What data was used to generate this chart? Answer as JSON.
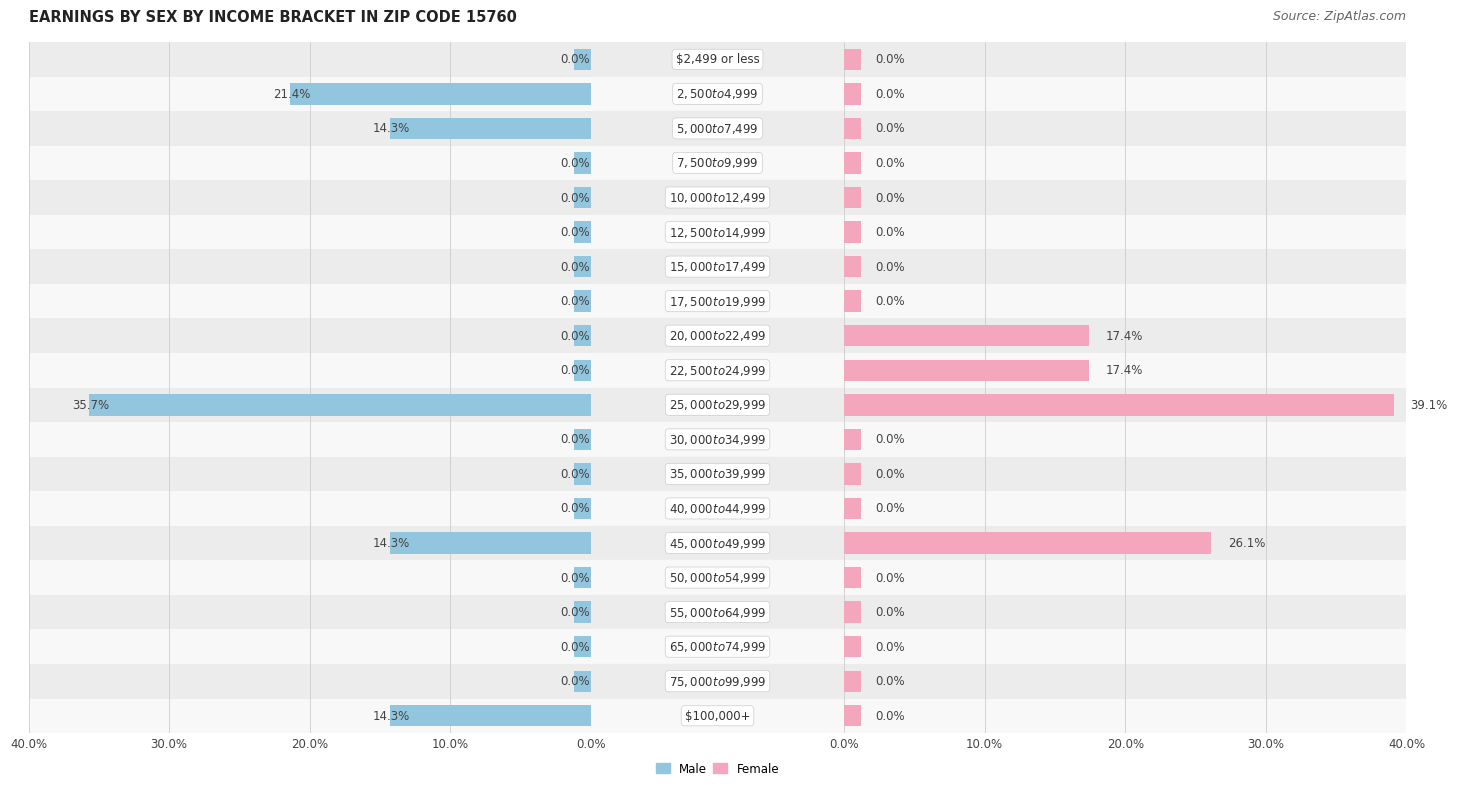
{
  "title": "EARNINGS BY SEX BY INCOME BRACKET IN ZIP CODE 15760",
  "source": "Source: ZipAtlas.com",
  "categories": [
    "$2,499 or less",
    "$2,500 to $4,999",
    "$5,000 to $7,499",
    "$7,500 to $9,999",
    "$10,000 to $12,499",
    "$12,500 to $14,999",
    "$15,000 to $17,499",
    "$17,500 to $19,999",
    "$20,000 to $22,499",
    "$22,500 to $24,999",
    "$25,000 to $29,999",
    "$30,000 to $34,999",
    "$35,000 to $39,999",
    "$40,000 to $44,999",
    "$45,000 to $49,999",
    "$50,000 to $54,999",
    "$55,000 to $64,999",
    "$65,000 to $74,999",
    "$75,000 to $99,999",
    "$100,000+"
  ],
  "male_values": [
    0.0,
    21.4,
    14.3,
    0.0,
    0.0,
    0.0,
    0.0,
    0.0,
    0.0,
    0.0,
    35.7,
    0.0,
    0.0,
    0.0,
    14.3,
    0.0,
    0.0,
    0.0,
    0.0,
    14.3
  ],
  "female_values": [
    0.0,
    0.0,
    0.0,
    0.0,
    0.0,
    0.0,
    0.0,
    0.0,
    17.4,
    17.4,
    39.1,
    0.0,
    0.0,
    0.0,
    26.1,
    0.0,
    0.0,
    0.0,
    0.0,
    0.0
  ],
  "male_color": "#92c5de",
  "female_color": "#f4a6bd",
  "male_label": "Male",
  "female_label": "Female",
  "xlim": 40.0,
  "stub_val": 1.2,
  "title_fontsize": 10.5,
  "source_fontsize": 9,
  "value_fontsize": 8.5,
  "cat_fontsize": 8.5,
  "axis_tick_fontsize": 8.5,
  "bar_height": 0.62,
  "row_colors": [
    "#ececec",
    "#f8f8f8"
  ]
}
